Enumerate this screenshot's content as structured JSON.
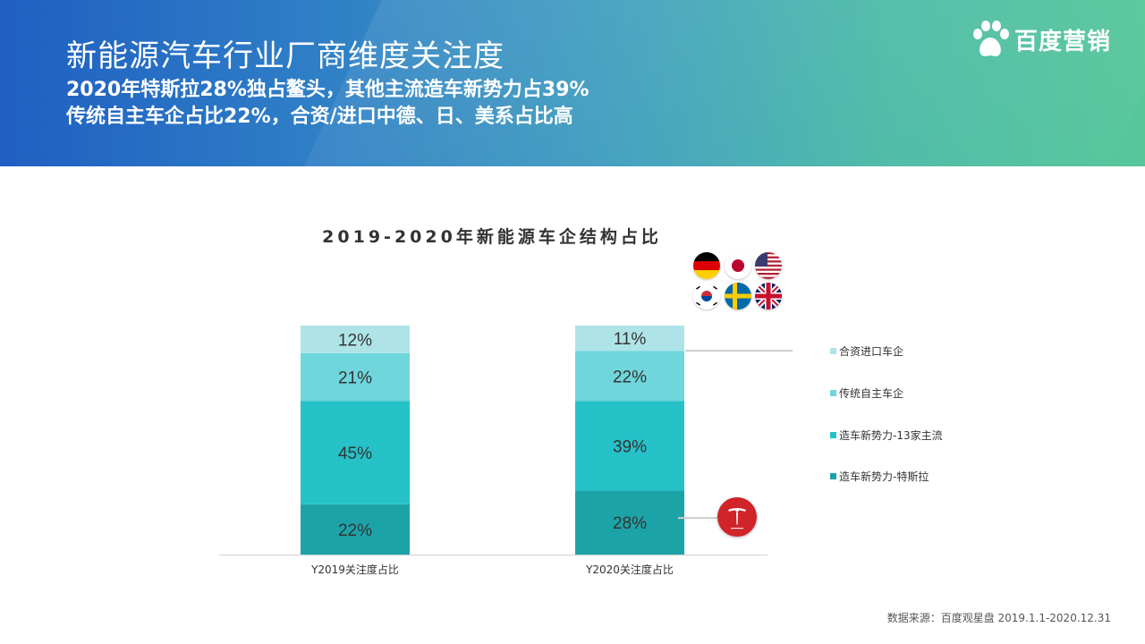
{
  "header": {
    "title": "新能源汽车行业厂商维度关注度",
    "subtitle_1": "2020年特斯拉28%独占鳌头，其他主流造车新势力占39%",
    "subtitle_2": "传统自主车企占比22%，合资/进口中德、日、美系占比高",
    "brand": "百度营销"
  },
  "chart_data": {
    "type": "bar",
    "stacked": true,
    "title": "2019-2020年新能源车企结构占比",
    "categories": [
      "Y2019关注度占比",
      "Y2020关注度占比"
    ],
    "series": [
      {
        "name": "造车新势力-特斯拉",
        "values": [
          22,
          28
        ],
        "labels": [
          "22%",
          "28%"
        ],
        "color": "#1ca3a8"
      },
      {
        "name": "造车新势力-13家主流",
        "values": [
          45,
          39
        ],
        "labels": [
          "45%",
          "39%"
        ],
        "color": "#25c2c8"
      },
      {
        "name": "传统自主车企",
        "values": [
          21,
          22
        ],
        "labels": [
          "21%",
          "22%"
        ],
        "color": "#6fd6dc"
      },
      {
        "name": "合资进口车企",
        "values": [
          12,
          11
        ],
        "labels": [
          "12%",
          "11%"
        ],
        "color": "#aee4e8"
      }
    ],
    "legend": [
      "合资进口车企",
      "传统自主车企",
      "造车新势力-13家主流",
      "造车新势力-特斯拉"
    ],
    "legend_position": "right",
    "ylim": [
      0,
      100
    ],
    "grid": false
  },
  "flags": [
    "germany-flag-icon",
    "japan-flag-icon",
    "usa-flag-icon",
    "korea-flag-icon",
    "sweden-flag-icon",
    "uk-flag-icon"
  ],
  "logo": {
    "name": "tesla-logo-icon",
    "color": "#d1232a"
  },
  "source": "数据来源：百度观星盘 2019.1.1-2020.12.31"
}
